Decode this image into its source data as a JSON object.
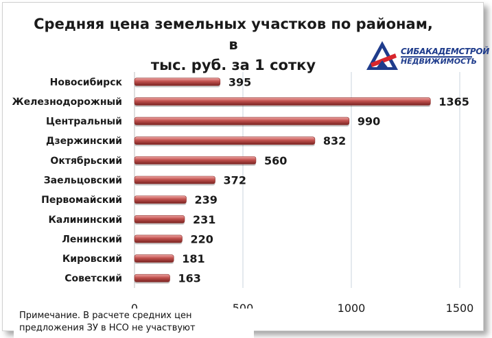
{
  "logo": {
    "line1": "СИБАКАДЕМСТРОЙ",
    "line2": "НЕДВИЖИМОСТЬ",
    "colors": {
      "blue": "#1f3c8c",
      "red": "#d8262c"
    }
  },
  "note": {
    "line1": "Примечание. В расчете средних цен",
    "line2": "предложения ЗУ в НСО не участвуют"
  },
  "chart_data": {
    "type": "bar",
    "orientation": "horizontal",
    "title_line1": "Средняя цена земельных участков по районам, в",
    "title_line2": "тыс. руб. за 1 сотку",
    "categories": [
      "Новосибирск",
      "Железнодорожный",
      "Центральный",
      "Дзержинский",
      "Октябрьский",
      "Заельцовский",
      "Первомайский",
      "Калининский",
      "Ленинский",
      "Кировский",
      "Советский"
    ],
    "values": [
      395,
      1365,
      990,
      832,
      560,
      372,
      239,
      231,
      220,
      181,
      163
    ],
    "xlim": [
      0,
      1500
    ],
    "x_ticks": [
      "0",
      "500",
      "1000",
      "1500"
    ],
    "grid": true,
    "bar_color": "#c0504d"
  }
}
